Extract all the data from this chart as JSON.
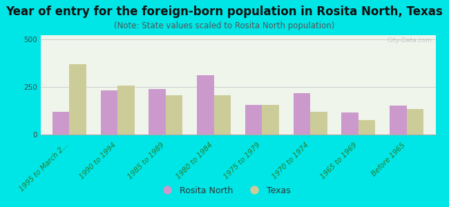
{
  "categories": [
    "1995 to March 2...",
    "1990 to 1994",
    "1985 to 1989",
    "1980 to 1984",
    "1975 to 1979",
    "1970 to 1974",
    "1965 to 1969",
    "Before 1965"
  ],
  "rosita_north": [
    120,
    230,
    240,
    310,
    155,
    215,
    115,
    150
  ],
  "texas": [
    370,
    255,
    205,
    205,
    155,
    120,
    75,
    135
  ],
  "rosita_color": "#cc99cc",
  "texas_color": "#cccc99",
  "background_outer": "#00e5e5",
  "background_plot": "#f0f5ec",
  "title": "Year of entry for the foreign-born population in Rosita North, Texas",
  "subtitle": "(Note: State values scaled to Rosita North population)",
  "ylabel_ticks": [
    0,
    250,
    500
  ],
  "ylim": [
    0,
    520
  ],
  "bar_width": 0.35,
  "title_fontsize": 12,
  "subtitle_fontsize": 8.5,
  "tick_fontsize": 7.5,
  "legend_label_rosita": "Rosita North",
  "legend_label_texas": "Texas"
}
